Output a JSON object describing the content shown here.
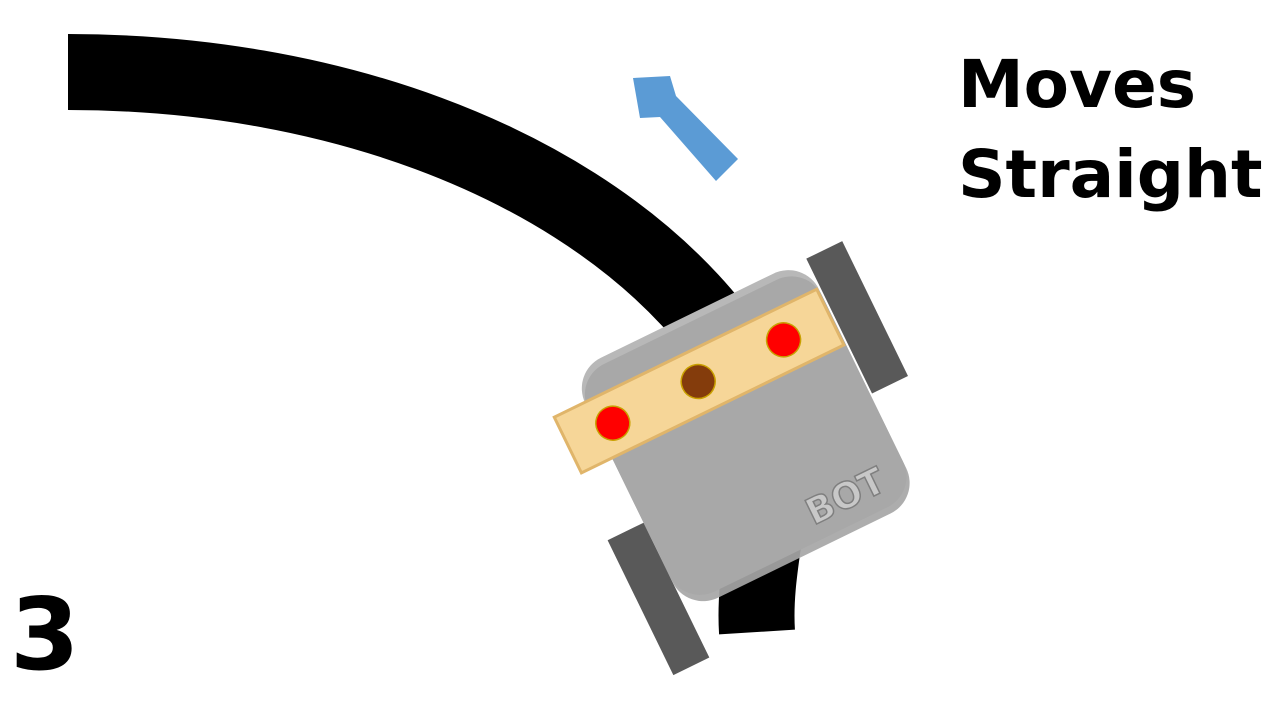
{
  "caption": {
    "line1": "Moves",
    "line2": "Straight"
  },
  "step_number": "3",
  "robot_label": "BOT",
  "colors": {
    "track": "#000000",
    "direction_arrow": "#5b9bd5",
    "robot_body": "#a6a6a6",
    "wheel": "#595959",
    "sensor_bar": "#f6d698",
    "sensor_off": "#ff0000",
    "sensor_on": "#843c0c"
  }
}
